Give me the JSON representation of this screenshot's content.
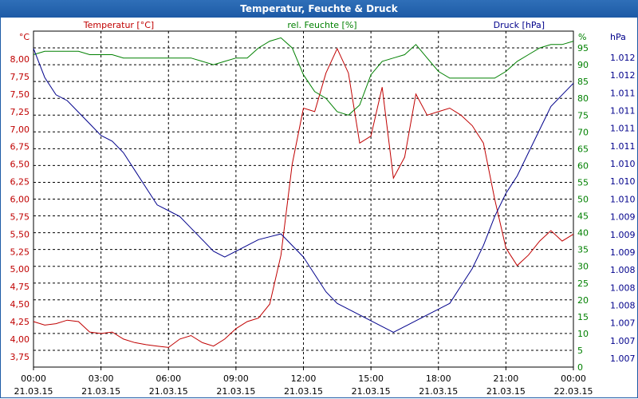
{
  "window": {
    "title": "Temperatur, Feuchte & Druck"
  },
  "colors": {
    "temperature": "#c00000",
    "humidity": "#008000",
    "pressure": "#00008b",
    "grid": "#000000",
    "axis_text": "#000000"
  },
  "chart_data": {
    "type": "line",
    "title": "Temperatur, Feuchte & Druck",
    "x_ticks": [
      {
        "time": "00:00",
        "date": "21.03.15"
      },
      {
        "time": "03:00",
        "date": "21.03.15"
      },
      {
        "time": "06:00",
        "date": "21.03.15"
      },
      {
        "time": "09:00",
        "date": "21.03.15"
      },
      {
        "time": "12:00",
        "date": "21.03.15"
      },
      {
        "time": "15:00",
        "date": "21.03.15"
      },
      {
        "time": "18:00",
        "date": "21.03.15"
      },
      {
        "time": "21:00",
        "date": "21.03.15"
      },
      {
        "time": "00:00",
        "date": "22.03.15"
      }
    ],
    "xlim": [
      0,
      24
    ],
    "axes": {
      "temperature": {
        "label": "Temperatur [°C]",
        "unit": "°C",
        "ylim": [
          3.6,
          8.4
        ],
        "ticks": [
          "3,75",
          "4,00",
          "4,25",
          "4,50",
          "4,75",
          "5,00",
          "5,25",
          "5,50",
          "5,75",
          "6,00",
          "6,25",
          "6,50",
          "6,75",
          "7,00",
          "7,25",
          "7,50",
          "7,75",
          "8,00"
        ]
      },
      "humidity": {
        "label": "rel. Feuchte [%]",
        "unit": "%",
        "ylim": [
          0,
          100
        ],
        "ticks": [
          "0",
          "5",
          "10",
          "15",
          "20",
          "25",
          "30",
          "35",
          "40",
          "45",
          "50",
          "55",
          "60",
          "65",
          "70",
          "75",
          "80",
          "85",
          "90",
          "95"
        ]
      },
      "pressure": {
        "label": "Druck [hPa]",
        "unit": "hPa",
        "ylim": [
          1006.6,
          1012.4
        ],
        "ticks": [
          "1.007",
          "1.007",
          "1.007",
          "1.008",
          "1.008",
          "1.008",
          "1.009",
          "1.009",
          "1.009",
          "1.010",
          "1.010",
          "1.010",
          "1.011",
          "1.011",
          "1.011",
          "1.011",
          "1.012",
          "1.012"
        ]
      }
    },
    "series": [
      {
        "name": "Temperatur",
        "axis": "temperature",
        "x": [
          0,
          0.5,
          1,
          1.5,
          2,
          2.5,
          3,
          3.5,
          4,
          4.5,
          5,
          5.5,
          6,
          6.5,
          7,
          7.5,
          8,
          8.5,
          9,
          9.5,
          10,
          10.5,
          11,
          11.5,
          12,
          12.5,
          13,
          13.5,
          14,
          14.5,
          15,
          15.5,
          16,
          16.5,
          17,
          17.5,
          18,
          18.5,
          19,
          19.5,
          20,
          20.5,
          21,
          21.5,
          22,
          22.5,
          23,
          23.5,
          24
        ],
        "values": [
          4.25,
          4.2,
          4.22,
          4.27,
          4.25,
          4.1,
          4.08,
          4.1,
          4.0,
          3.95,
          3.92,
          3.9,
          3.88,
          4.0,
          4.05,
          3.95,
          3.9,
          4.0,
          4.15,
          4.25,
          4.3,
          4.5,
          5.2,
          6.5,
          7.3,
          7.25,
          7.8,
          8.15,
          7.8,
          6.8,
          6.9,
          7.6,
          6.3,
          6.6,
          7.5,
          7.2,
          7.25,
          7.3,
          7.2,
          7.05,
          6.8,
          6.0,
          5.3,
          5.05,
          5.2,
          5.4,
          5.55,
          5.4,
          5.5
        ]
      },
      {
        "name": "rel. Feuchte",
        "axis": "humidity",
        "x": [
          0,
          0.5,
          1,
          1.5,
          2,
          2.5,
          3,
          3.5,
          4,
          4.5,
          5,
          5.5,
          6,
          6.5,
          7,
          7.5,
          8,
          8.5,
          9,
          9.5,
          10,
          10.5,
          11,
          11.5,
          12,
          12.5,
          13,
          13.5,
          14,
          14.5,
          15,
          15.5,
          16,
          16.5,
          17,
          17.5,
          18,
          18.5,
          19,
          19.5,
          20,
          20.5,
          21,
          21.5,
          22,
          22.5,
          23,
          23.5,
          24
        ],
        "values": [
          93,
          94,
          94,
          94,
          94,
          93,
          93,
          93,
          92,
          92,
          92,
          92,
          92,
          92,
          92,
          91,
          90,
          91,
          92,
          92,
          95,
          97,
          98,
          95,
          87,
          82,
          80,
          76,
          75,
          78,
          87,
          91,
          92,
          93,
          96,
          92,
          88,
          86,
          86,
          86,
          86,
          86,
          88,
          91,
          93,
          95,
          96,
          96,
          97
        ]
      },
      {
        "name": "Druck",
        "axis": "pressure",
        "x": [
          0,
          0.5,
          1,
          1.5,
          2,
          2.5,
          3,
          3.5,
          4,
          4.5,
          5,
          5.5,
          6,
          6.5,
          7,
          7.5,
          8,
          8.5,
          9,
          9.5,
          10,
          10.5,
          11,
          11.5,
          12,
          12.5,
          13,
          13.5,
          14,
          14.5,
          15,
          15.5,
          16,
          16.5,
          17,
          17.5,
          18,
          18.5,
          19,
          19.5,
          20,
          20.5,
          21,
          21.5,
          22,
          22.5,
          23,
          23.5,
          24
        ],
        "values": [
          1012.1,
          1011.6,
          1011.3,
          1011.2,
          1011.0,
          1010.8,
          1010.6,
          1010.5,
          1010.3,
          1010.0,
          1009.7,
          1009.4,
          1009.3,
          1009.2,
          1009.0,
          1008.8,
          1008.6,
          1008.5,
          1008.6,
          1008.7,
          1008.8,
          1008.85,
          1008.9,
          1008.7,
          1008.5,
          1008.2,
          1007.9,
          1007.7,
          1007.6,
          1007.5,
          1007.4,
          1007.3,
          1007.2,
          1007.3,
          1007.4,
          1007.5,
          1007.6,
          1007.7,
          1008.0,
          1008.3,
          1008.7,
          1009.2,
          1009.6,
          1009.9,
          1010.3,
          1010.7,
          1011.1,
          1011.3,
          1011.5
        ]
      }
    ],
    "grid": true
  }
}
